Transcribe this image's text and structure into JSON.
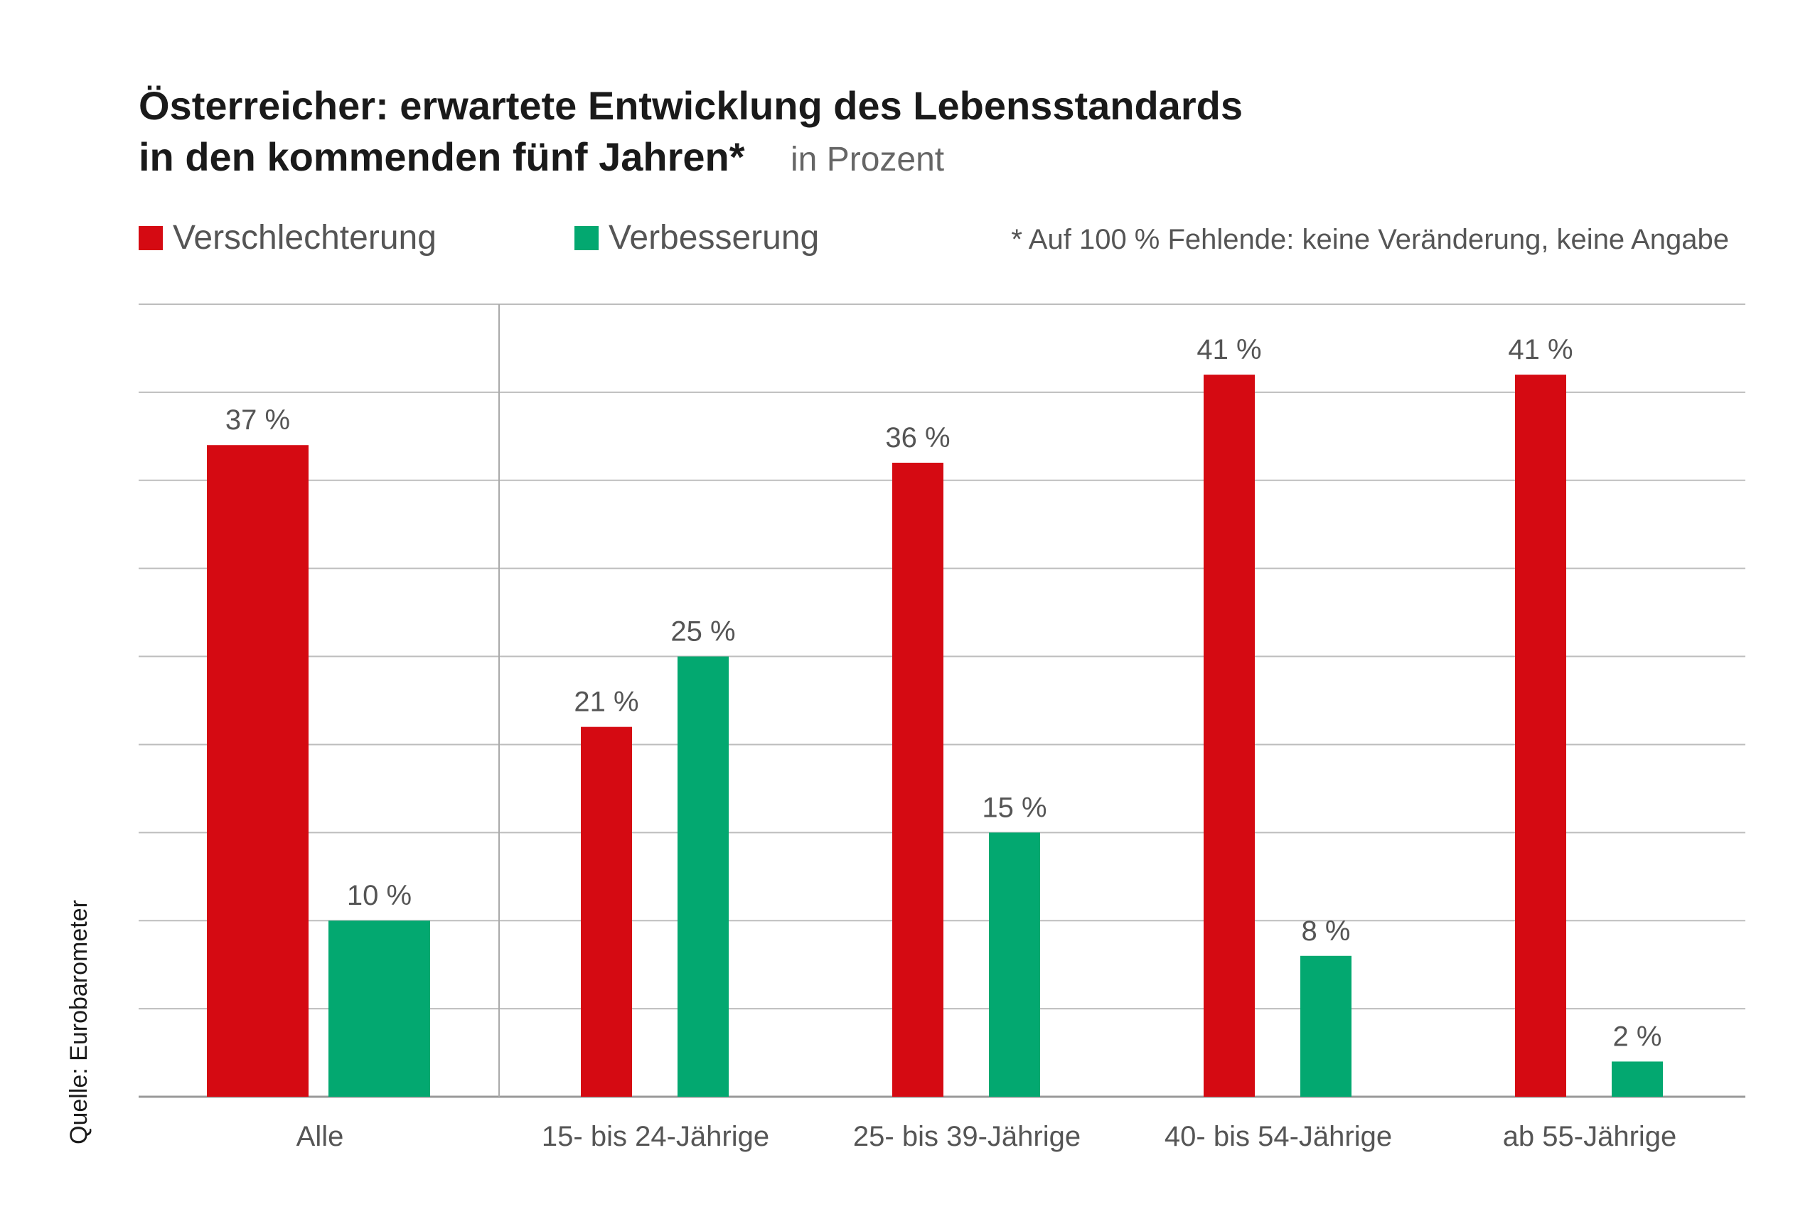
{
  "chart_data": {
    "type": "bar",
    "title_line1": "Österreicher: erwartete Entwicklung des Lebensstandards",
    "title_line2": "in den kommenden fünf Jahren*",
    "unit": "in Prozent",
    "note": "* Auf 100 % Fehlende: keine Veränderung, keine Angabe",
    "source": "Quelle: Eurobarometer",
    "categories": [
      "Alle",
      "15- bis 24-Jährige",
      "25- bis 39-Jährige",
      "40- bis 54-Jährige",
      "ab 55-Jährige"
    ],
    "series": [
      {
        "name": "Verschlechterung",
        "color": "#d50a12",
        "values": [
          37,
          21,
          36,
          41,
          41
        ],
        "labels": [
          "37 %",
          "21 %",
          "36 %",
          "41 %",
          "41 %"
        ]
      },
      {
        "name": "Verbesserung",
        "color": "#03a870",
        "values": [
          10,
          25,
          15,
          8,
          2
        ],
        "labels": [
          "10 %",
          "25 %",
          "15 %",
          "8 %",
          "2 %"
        ]
      }
    ],
    "ylim": [
      0,
      45
    ],
    "grid_step": 5,
    "grid": true,
    "legend_position": "top-left"
  }
}
